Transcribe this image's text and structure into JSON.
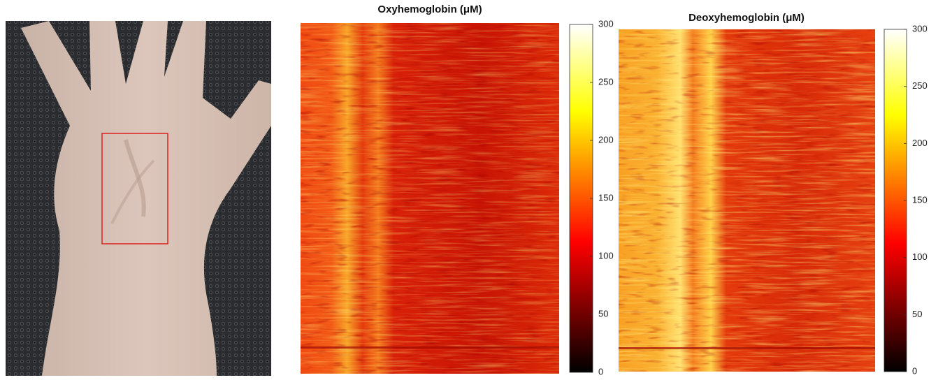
{
  "chart_data": [
    {
      "type": "heatmap",
      "title": "Oxyhemoglobin (μM)",
      "clim": [
        0,
        300
      ],
      "cticks": [
        0,
        50,
        100,
        150,
        200,
        250,
        300
      ],
      "colormap": "hot"
    },
    {
      "type": "heatmap",
      "title": "Deoxyhemoglobin (μM)",
      "clim": [
        0,
        300
      ],
      "cticks": [
        0,
        50,
        100,
        150,
        200,
        250,
        300
      ],
      "colormap": "hot"
    }
  ]
}
